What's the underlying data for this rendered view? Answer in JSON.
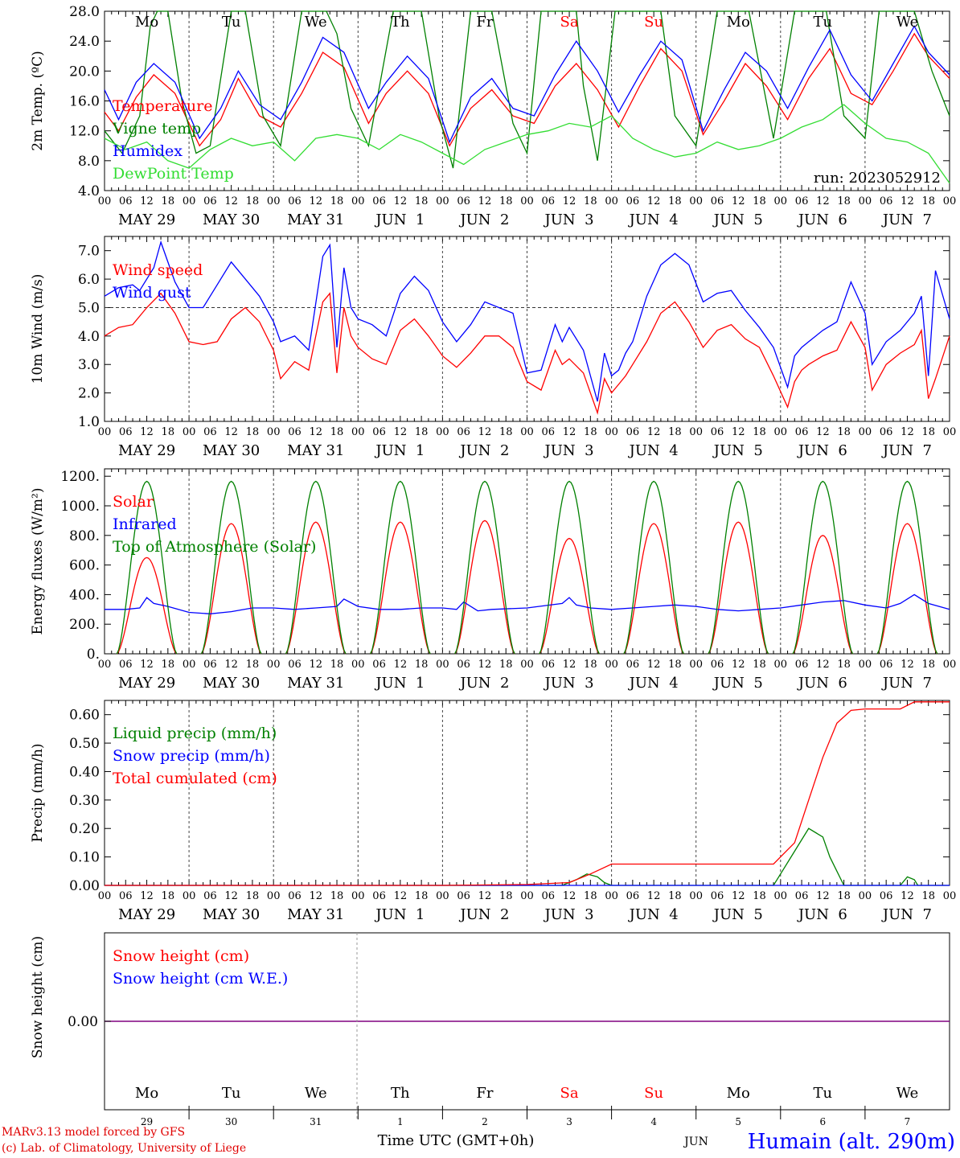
{
  "station": "Humain (alt. 290m)",
  "run_label": "run: 2023052912",
  "xaxis": {
    "hour_ticks": [
      "00",
      "06",
      "12",
      "18"
    ],
    "final_tick": "00",
    "date_labels": [
      "MAY 29",
      "MAY 30",
      "MAY 31",
      "JUN  1",
      "JUN  2",
      "JUN  3",
      "JUN  4",
      "JUN  5",
      "JUN  6",
      "JUN  7"
    ],
    "day_names": [
      "Mo",
      "Tu",
      "We",
      "Th",
      "Fr",
      "Sa",
      "Su",
      "Mo",
      "Tu",
      "We"
    ],
    "weekend_flags": [
      false,
      false,
      false,
      false,
      false,
      true,
      true,
      false,
      false,
      false
    ],
    "day_numbers": [
      "29",
      "30",
      "31",
      "1",
      "2",
      "3",
      "4",
      "5",
      "6",
      "7"
    ],
    "month_label": "JUN",
    "time_label": "Time UTC (GMT+0h)"
  },
  "credits": {
    "line1": "MARv3.13 model forced by GFS",
    "line2": "(c) Lab. of Climatology, University of Liege"
  },
  "colors": {
    "red": "#ff0000",
    "blue": "#0000ff",
    "green": "#008000",
    "lime": "#33dd33",
    "purple": "#800080"
  },
  "chart_data": [
    {
      "type": "line",
      "ylabel": "2m Temp. (ºC)",
      "ylim": [
        4.0,
        28.0
      ],
      "yticks": [
        "4.0",
        "8.0",
        "12.0",
        "16.0",
        "20.0",
        "24.0",
        "28.0"
      ],
      "x_unit": "hours since May 29 00 UTC",
      "series": [
        {
          "name": "Temperature",
          "color": "red",
          "x": [
            0,
            4,
            9,
            14,
            20,
            27,
            33,
            38,
            44,
            50,
            56,
            62,
            68,
            75,
            80,
            86,
            92,
            98,
            104,
            110,
            116,
            122,
            128,
            134,
            140,
            146,
            152,
            158,
            164,
            170,
            176,
            182,
            188,
            194,
            200,
            206,
            212,
            218,
            224,
            230,
            234,
            240
          ],
          "y": [
            14.5,
            12.0,
            16.5,
            19.5,
            17.0,
            10.0,
            13.5,
            19.0,
            14.0,
            12.5,
            17.0,
            22.5,
            20.5,
            13.0,
            17.0,
            20.0,
            17.0,
            10.0,
            15.0,
            17.5,
            14.0,
            13.0,
            18.0,
            21.0,
            17.5,
            12.5,
            18.0,
            23.0,
            20.0,
            11.5,
            16.0,
            21.0,
            18.0,
            13.5,
            19.0,
            23.0,
            17.0,
            15.5,
            20.0,
            25.0,
            22.0,
            19.0
          ]
        },
        {
          "name": "Vigne temp",
          "color": "green",
          "x": [
            0,
            5,
            10,
            12,
            13,
            15,
            18,
            22,
            26,
            30,
            36,
            40,
            45,
            50,
            56,
            60,
            63,
            66,
            70,
            75,
            82,
            86,
            90,
            95,
            99,
            104,
            108,
            110,
            116,
            120,
            124,
            128,
            132,
            134,
            136,
            140,
            145,
            150,
            156,
            158,
            162,
            168,
            174,
            178,
            183,
            190,
            196,
            200,
            205,
            210,
            216,
            220,
            225,
            230,
            235,
            240
          ],
          "y": [
            12.0,
            9.0,
            14.0,
            22.0,
            26.0,
            28.0,
            28.0,
            16.0,
            9.0,
            10.0,
            28.0,
            28.0,
            14.0,
            10.0,
            28.0,
            28.0,
            28.0,
            25.0,
            15.0,
            10.0,
            28.0,
            28.0,
            28.0,
            14.0,
            7.0,
            28.0,
            28.0,
            28.0,
            13.0,
            9.0,
            28.0,
            28.0,
            28.0,
            28.0,
            18.0,
            8.0,
            28.0,
            28.0,
            28.0,
            28.0,
            14.0,
            10.0,
            28.0,
            28.0,
            28.0,
            11.0,
            28.0,
            28.0,
            28.0,
            14.0,
            11.0,
            28.0,
            28.0,
            28.0,
            20.0,
            14.0
          ]
        },
        {
          "name": "Humidex",
          "color": "blue",
          "x": [
            0,
            4,
            9,
            14,
            20,
            27,
            33,
            38,
            44,
            50,
            56,
            62,
            68,
            75,
            80,
            86,
            92,
            98,
            104,
            110,
            116,
            122,
            128,
            134,
            140,
            146,
            152,
            158,
            164,
            170,
            176,
            182,
            188,
            194,
            200,
            206,
            212,
            218,
            224,
            230,
            234,
            240
          ],
          "y": [
            17.5,
            13.5,
            18.5,
            21.0,
            18.5,
            11.0,
            15.0,
            20.0,
            15.5,
            13.5,
            18.5,
            24.5,
            22.5,
            15.0,
            18.5,
            22.0,
            19.0,
            10.5,
            16.5,
            19.0,
            15.0,
            14.0,
            19.5,
            24.0,
            20.0,
            14.5,
            19.5,
            24.0,
            21.5,
            12.0,
            17.5,
            22.5,
            20.0,
            15.0,
            20.5,
            25.5,
            19.5,
            16.0,
            21.0,
            26.0,
            22.5,
            19.5
          ]
        },
        {
          "name": "DewPoint Temp",
          "color": "lime",
          "x": [
            0,
            6,
            12,
            18,
            24,
            30,
            36,
            42,
            48,
            54,
            60,
            66,
            72,
            78,
            84,
            90,
            96,
            102,
            108,
            114,
            120,
            126,
            132,
            138,
            144,
            150,
            156,
            162,
            168,
            174,
            180,
            186,
            192,
            198,
            204,
            210,
            216,
            222,
            228,
            234,
            240
          ],
          "y": [
            11.0,
            9.5,
            10.5,
            8.0,
            7.0,
            9.5,
            11.0,
            10.0,
            10.5,
            8.0,
            11.0,
            11.5,
            11.0,
            9.5,
            11.5,
            10.5,
            9.0,
            7.5,
            9.5,
            10.5,
            11.5,
            12.0,
            13.0,
            12.5,
            14.0,
            11.0,
            9.5,
            8.5,
            9.0,
            10.5,
            9.5,
            10.0,
            11.0,
            12.5,
            13.5,
            15.5,
            13.0,
            11.0,
            10.5,
            9.0,
            5.0
          ]
        }
      ]
    },
    {
      "type": "line",
      "ylabel": "10m Wind (m/s)",
      "ylim": [
        1.0,
        7.5
      ],
      "yticks": [
        "1.0",
        "2.0",
        "3.0",
        "4.0",
        "5.0",
        "6.0",
        "7.0"
      ],
      "reference_line": 5.0,
      "series": [
        {
          "name": "Wind speed",
          "color": "red",
          "x": [
            0,
            4,
            8,
            12,
            16,
            20,
            24,
            28,
            32,
            36,
            40,
            44,
            48,
            50,
            54,
            58,
            62,
            64,
            66,
            68,
            70,
            72,
            76,
            80,
            84,
            88,
            92,
            96,
            100,
            104,
            108,
            112,
            116,
            120,
            124,
            128,
            130,
            132,
            136,
            140,
            142,
            144,
            146,
            148,
            150,
            154,
            158,
            162,
            166,
            170,
            174,
            178,
            182,
            186,
            190,
            194,
            196,
            198,
            200,
            204,
            208,
            212,
            216,
            218,
            222,
            226,
            230,
            232,
            234,
            236,
            240
          ],
          "y": [
            4.0,
            4.3,
            4.4,
            5.0,
            5.5,
            4.8,
            3.8,
            3.7,
            3.8,
            4.6,
            5.0,
            4.5,
            3.5,
            2.5,
            3.1,
            2.8,
            5.2,
            5.5,
            2.7,
            5.0,
            4.0,
            3.6,
            3.2,
            3.0,
            4.2,
            4.6,
            4.0,
            3.3,
            2.9,
            3.4,
            4.0,
            4.0,
            3.6,
            2.4,
            2.1,
            3.5,
            3.0,
            3.2,
            2.7,
            1.3,
            2.5,
            2.0,
            2.3,
            2.6,
            3.0,
            3.8,
            4.8,
            5.2,
            4.5,
            3.6,
            4.2,
            4.4,
            3.9,
            3.6,
            2.6,
            1.5,
            2.4,
            2.8,
            3.0,
            3.3,
            3.5,
            4.5,
            3.6,
            2.1,
            3.0,
            3.4,
            3.7,
            4.2,
            1.8,
            2.5,
            4.0
          ]
        },
        {
          "name": "Wind gust",
          "color": "blue",
          "x": [
            0,
            4,
            8,
            10,
            14,
            16,
            20,
            24,
            28,
            32,
            36,
            40,
            44,
            48,
            50,
            54,
            58,
            62,
            64,
            66,
            68,
            70,
            72,
            76,
            80,
            84,
            88,
            92,
            96,
            100,
            104,
            108,
            112,
            116,
            120,
            124,
            128,
            130,
            132,
            136,
            140,
            142,
            144,
            146,
            148,
            150,
            154,
            158,
            162,
            166,
            170,
            174,
            178,
            182,
            186,
            190,
            194,
            196,
            198,
            200,
            204,
            208,
            212,
            216,
            218,
            222,
            226,
            230,
            232,
            234,
            236,
            240
          ],
          "y": [
            5.4,
            5.7,
            5.8,
            5.6,
            6.4,
            7.3,
            5.9,
            5.0,
            5.0,
            5.8,
            6.6,
            6.0,
            5.4,
            4.5,
            3.8,
            4.0,
            3.5,
            6.8,
            7.2,
            3.6,
            6.4,
            5.0,
            4.6,
            4.4,
            4.0,
            5.5,
            6.1,
            5.6,
            4.5,
            3.8,
            4.4,
            5.2,
            5.0,
            4.8,
            2.7,
            2.8,
            4.4,
            3.8,
            4.3,
            3.5,
            1.7,
            3.4,
            2.6,
            2.8,
            3.4,
            3.8,
            5.4,
            6.5,
            6.9,
            6.5,
            5.2,
            5.5,
            5.6,
            4.9,
            4.3,
            3.6,
            2.2,
            3.3,
            3.6,
            3.8,
            4.2,
            4.5,
            5.9,
            4.8,
            3.0,
            3.8,
            4.2,
            4.8,
            5.4,
            2.6,
            6.3,
            4.6
          ]
        }
      ]
    },
    {
      "type": "line",
      "ylabel": "Energy fluxes (W/m²)",
      "ylim": [
        0,
        1250
      ],
      "yticks": [
        "0.",
        "200.",
        "400.",
        "600.",
        "800.",
        "1000.",
        "1200."
      ],
      "series": [
        {
          "name": "Solar",
          "color": "red",
          "shape": "daily arch",
          "peaks": [
            650,
            880,
            890,
            890,
            900,
            780,
            880,
            890,
            800,
            880
          ]
        },
        {
          "name": "Infrared",
          "color": "blue",
          "x": [
            0,
            6,
            10,
            12,
            14,
            18,
            24,
            30,
            36,
            42,
            48,
            54,
            60,
            66,
            68,
            72,
            78,
            84,
            90,
            96,
            100,
            102,
            106,
            110,
            120,
            130,
            132,
            134,
            138,
            144,
            150,
            156,
            162,
            168,
            174,
            180,
            186,
            192,
            198,
            204,
            210,
            216,
            222,
            226,
            230,
            234,
            240
          ],
          "y": [
            300,
            300,
            310,
            380,
            340,
            320,
            280,
            270,
            285,
            310,
            310,
            300,
            310,
            320,
            370,
            320,
            300,
            300,
            310,
            310,
            300,
            350,
            290,
            300,
            310,
            340,
            380,
            330,
            310,
            300,
            310,
            320,
            330,
            320,
            300,
            290,
            300,
            310,
            330,
            350,
            360,
            330,
            310,
            340,
            400,
            340,
            300
          ]
        },
        {
          "name": "Top of Atmosphere (Solar)",
          "color": "green",
          "shape": "daily arch",
          "peaks": [
            1165,
            1165,
            1165,
            1165,
            1165,
            1165,
            1165,
            1165,
            1165,
            1165
          ]
        }
      ],
      "daylight_hours": [
        3.5,
        20.5
      ]
    },
    {
      "type": "line",
      "ylabel": "Precip (mm/h)",
      "ylim": [
        0,
        0.65
      ],
      "yticks": [
        "0.00",
        "0.10",
        "0.20",
        "0.30",
        "0.40",
        "0.50",
        "0.60"
      ],
      "series": [
        {
          "name": "Liquid precip (mm/h)",
          "color": "green",
          "x": [
            0,
            130,
            134,
            137,
            140,
            142,
            144,
            190,
            192,
            196,
            200,
            204,
            206,
            210,
            226,
            228,
            230,
            231,
            240
          ],
          "y": [
            0,
            0,
            0.02,
            0.04,
            0.03,
            0.01,
            0,
            0,
            0.04,
            0.12,
            0.2,
            0.17,
            0.1,
            0,
            0,
            0.03,
            0.02,
            0,
            0
          ]
        },
        {
          "name": "Snow precip (mm/h)",
          "color": "blue",
          "x": [
            0,
            240
          ],
          "y": [
            0,
            0
          ]
        },
        {
          "name": "Total cumulated (cm)",
          "color": "red",
          "x": [
            0,
            96,
            120,
            132,
            138,
            144,
            190,
            196,
            200,
            204,
            208,
            212,
            216,
            226,
            230,
            240
          ],
          "y": [
            0,
            0,
            0.003,
            0.01,
            0.04,
            0.075,
            0.075,
            0.15,
            0.3,
            0.45,
            0.57,
            0.615,
            0.62,
            0.62,
            0.645,
            0.645
          ]
        }
      ]
    },
    {
      "type": "line",
      "ylabel": "Snow height (cm)",
      "yticks": [
        "0.00"
      ],
      "series": [
        {
          "name": "Snow height (cm)",
          "color": "red",
          "x": [
            0,
            240
          ],
          "y": [
            0,
            0
          ]
        },
        {
          "name": "Snow height (cm W.E.)",
          "color": "blue",
          "x": [
            0,
            240
          ],
          "y": [
            0,
            0
          ]
        }
      ]
    }
  ]
}
